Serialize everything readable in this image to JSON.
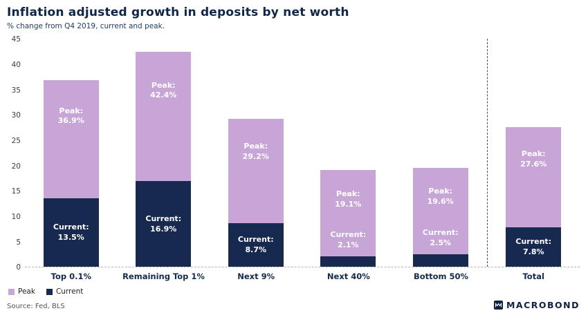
{
  "header": {
    "title": "Inflation adjusted growth in deposits by net worth",
    "subtitle": "% change from Q4 2019, current and peak."
  },
  "chart_data": {
    "type": "bar",
    "variant": "overlay-stacked",
    "title": "Inflation adjusted growth in deposits by net worth",
    "subtitle": "% change from Q4 2019, current and peak.",
    "categories": [
      "Top 0.1%",
      "Remaining Top 1%",
      "Next 9%",
      "Next 40%",
      "Bottom 50%",
      "Total"
    ],
    "series": [
      {
        "name": "Peak",
        "color": "#c7a5d6",
        "values": [
          36.9,
          42.4,
          29.2,
          19.1,
          19.6,
          27.6
        ]
      },
      {
        "name": "Current",
        "color": "#17294f",
        "values": [
          13.5,
          16.9,
          8.7,
          2.1,
          2.5,
          7.8
        ]
      }
    ],
    "ylim": [
      0,
      45
    ],
    "yticks": [
      0,
      5,
      10,
      15,
      20,
      25,
      30,
      35,
      40,
      45
    ],
    "separator_before_category": "Total",
    "bar_label_format": "{name}:\n{value}%",
    "legend": [
      "Peak",
      "Current"
    ],
    "legend_position": "bottom-left",
    "grid": false
  },
  "footer": {
    "source": "Source: Fed, BLS",
    "brand": "MACROBOND"
  }
}
